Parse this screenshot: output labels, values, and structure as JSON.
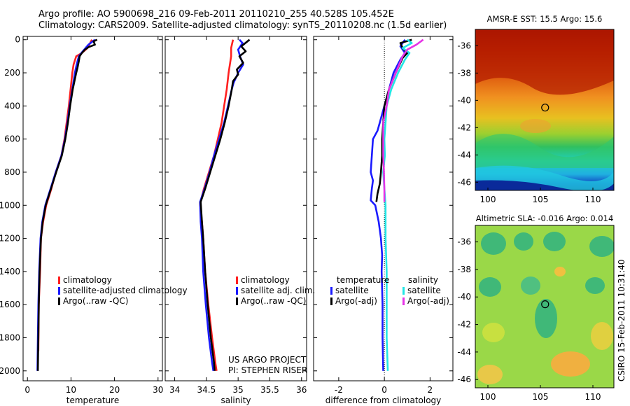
{
  "header": {
    "line1": "Argo profile: AO 5900698_216 09-Feb-2011 20110210_255 40.528S 105.452E",
    "line2": "Climatology: CARS2009. Satellite-adjusted climatology: synTS_20110208.nc (1.5d earlier)"
  },
  "colors": {
    "climatology": "#ff2020",
    "satellite": "#1a1aff",
    "argo": "#000000",
    "sal_satellite": "#22e5e5",
    "sal_argo": "#e633e6"
  },
  "chart_data": [
    {
      "type": "line",
      "name": "temperature-profile",
      "xlabel": "temperature",
      "ylabel": "",
      "xlim": [
        -1,
        31
      ],
      "ylim": [
        2060,
        -20
      ],
      "xticks": [
        0,
        10,
        20,
        30
      ],
      "yticks": [
        0,
        200,
        400,
        600,
        800,
        1000,
        1200,
        1400,
        1600,
        1800,
        2000
      ],
      "legend": {
        "position": "lower-center",
        "entries": [
          "climatology",
          "satellite-adjusted climatology",
          "Argo(..raw -QC)"
        ]
      },
      "series": [
        {
          "name": "climatology",
          "color": "#ff2020",
          "points": [
            [
              14.8,
              0
            ],
            [
              13.8,
              50
            ],
            [
              12.5,
              80
            ],
            [
              11.2,
              100
            ],
            [
              10.6,
              150
            ],
            [
              10.3,
              200
            ],
            [
              9.9,
              300
            ],
            [
              9.5,
              400
            ],
            [
              9.0,
              500
            ],
            [
              8.5,
              600
            ],
            [
              7.8,
              700
            ],
            [
              6.5,
              800
            ],
            [
              5.5,
              900
            ],
            [
              4.3,
              1000
            ],
            [
              3.6,
              1100
            ],
            [
              3.1,
              1200
            ],
            [
              2.9,
              1400
            ],
            [
              2.6,
              1600
            ],
            [
              2.5,
              1880
            ]
          ]
        },
        {
          "name": "satellite",
          "color": "#1a1aff",
          "points": [
            [
              15.5,
              0
            ],
            [
              14.0,
              30
            ],
            [
              12.7,
              70
            ],
            [
              11.8,
              100
            ],
            [
              11.3,
              150
            ],
            [
              10.9,
              200
            ],
            [
              10.3,
              300
            ],
            [
              9.7,
              400
            ],
            [
              9.2,
              500
            ],
            [
              8.6,
              600
            ],
            [
              7.8,
              700
            ],
            [
              6.5,
              800
            ],
            [
              5.3,
              900
            ],
            [
              4.1,
              1000
            ],
            [
              3.4,
              1100
            ],
            [
              3.0,
              1200
            ],
            [
              2.7,
              1400
            ],
            [
              2.5,
              1600
            ],
            [
              2.4,
              1800
            ],
            [
              2.3,
              2000
            ]
          ]
        },
        {
          "name": "Argo(..raw -QC)",
          "color": "#000000",
          "points": [
            [
              16.0,
              0
            ],
            [
              15.2,
              10
            ],
            [
              15.5,
              30
            ],
            [
              14.0,
              45
            ],
            [
              13.2,
              60
            ],
            [
              12.5,
              80
            ],
            [
              12.0,
              100
            ],
            [
              11.8,
              130
            ],
            [
              11.5,
              170
            ],
            [
              11.2,
              200
            ],
            [
              10.8,
              250
            ],
            [
              10.4,
              300
            ],
            [
              9.8,
              400
            ],
            [
              9.3,
              500
            ],
            [
              8.7,
              600
            ],
            [
              7.9,
              700
            ],
            [
              6.6,
              800
            ],
            [
              5.4,
              900
            ],
            [
              4.2,
              1000
            ],
            [
              3.5,
              1100
            ],
            [
              3.1,
              1200
            ],
            [
              2.8,
              1400
            ],
            [
              2.6,
              1600
            ],
            [
              2.5,
              1800
            ],
            [
              2.4,
              2000
            ]
          ]
        }
      ]
    },
    {
      "type": "line",
      "name": "salinity-profile",
      "xlabel": "salinity",
      "xlim": [
        33.85,
        36.08
      ],
      "ylim": [
        2060,
        -20
      ],
      "xticks": [
        34,
        34.5,
        35,
        35.5,
        36
      ],
      "xticklabels": [
        "34",
        "34.5",
        "35",
        "35.5",
        "36"
      ],
      "legend": {
        "position": "lower-right",
        "entries": [
          "climatology",
          "satellite adj. clim.",
          "Argo(..raw -QC)"
        ]
      },
      "annotation": [
        "US ARGO PROJECT",
        "PI: STEPHEN RISER"
      ],
      "series": [
        {
          "name": "climatology",
          "color": "#ff2020",
          "points": [
            [
              34.92,
              0
            ],
            [
              34.89,
              50
            ],
            [
              34.89,
              100
            ],
            [
              34.87,
              150
            ],
            [
              34.85,
              200
            ],
            [
              34.82,
              300
            ],
            [
              34.78,
              400
            ],
            [
              34.74,
              500
            ],
            [
              34.68,
              600
            ],
            [
              34.62,
              700
            ],
            [
              34.54,
              800
            ],
            [
              34.46,
              900
            ],
            [
              34.4,
              990
            ],
            [
              34.43,
              1100
            ],
            [
              34.45,
              1200
            ],
            [
              34.48,
              1400
            ],
            [
              34.53,
              1600
            ],
            [
              34.59,
              1800
            ],
            [
              34.64,
              1950
            ],
            [
              34.66,
              2000
            ]
          ]
        },
        {
          "name": "satellite",
          "color": "#1a1aff",
          "points": [
            [
              35.02,
              0
            ],
            [
              35.07,
              20
            ],
            [
              35.0,
              60
            ],
            [
              35.03,
              100
            ],
            [
              35.08,
              150
            ],
            [
              35.0,
              200
            ],
            [
              34.93,
              260
            ],
            [
              34.9,
              300
            ],
            [
              34.84,
              400
            ],
            [
              34.78,
              500
            ],
            [
              34.7,
              600
            ],
            [
              34.62,
              700
            ],
            [
              34.55,
              800
            ],
            [
              34.47,
              900
            ],
            [
              34.4,
              980
            ],
            [
              34.41,
              1100
            ],
            [
              34.43,
              1200
            ],
            [
              34.45,
              1400
            ],
            [
              34.49,
              1600
            ],
            [
              34.54,
              1800
            ],
            [
              34.59,
              1950
            ],
            [
              34.61,
              2000
            ]
          ]
        },
        {
          "name": "Argo(..raw -QC)",
          "color": "#000000",
          "points": [
            [
              35.18,
              0
            ],
            [
              35.05,
              40
            ],
            [
              35.12,
              70
            ],
            [
              35.02,
              100
            ],
            [
              35.08,
              140
            ],
            [
              34.98,
              180
            ],
            [
              35.0,
              210
            ],
            [
              34.92,
              250
            ],
            [
              34.9,
              300
            ],
            [
              34.85,
              400
            ],
            [
              34.79,
              500
            ],
            [
              34.72,
              600
            ],
            [
              34.64,
              700
            ],
            [
              34.56,
              800
            ],
            [
              34.48,
              900
            ],
            [
              34.41,
              980
            ],
            [
              34.43,
              1100
            ],
            [
              34.45,
              1200
            ],
            [
              34.48,
              1400
            ],
            [
              34.52,
              1600
            ],
            [
              34.57,
              1800
            ],
            [
              34.62,
              1950
            ],
            [
              34.63,
              2000
            ]
          ]
        }
      ]
    },
    {
      "type": "line",
      "name": "difference-profile",
      "xlabel": "difference from climatology",
      "xlim": [
        -3.1,
        3.0
      ],
      "ylim": [
        2060,
        -20
      ],
      "xticks": [
        -2,
        0,
        2
      ],
      "legend": {
        "position": "lower-center",
        "temperature_heading": "temperature",
        "salinity_heading": "salinity",
        "entries": [
          "satellite",
          "Argo(-adj)",
          "satellite",
          "Argo(-adj)"
        ]
      },
      "series": [
        {
          "name": "temperature satellite",
          "color": "#1a1aff",
          "points": [
            [
              0.9,
              0
            ],
            [
              0.7,
              40
            ],
            [
              0.9,
              80
            ],
            [
              0.7,
              120
            ],
            [
              0.4,
              200
            ],
            [
              0.2,
              300
            ],
            [
              0.0,
              400
            ],
            [
              -0.2,
              500
            ],
            [
              -0.3,
              550
            ],
            [
              -0.5,
              600
            ],
            [
              -0.55,
              700
            ],
            [
              -0.6,
              800
            ],
            [
              -0.5,
              850
            ],
            [
              -0.55,
              900
            ],
            [
              -0.6,
              970
            ],
            [
              -0.4,
              1000
            ],
            [
              -0.25,
              1100
            ],
            [
              -0.15,
              1200
            ],
            [
              -0.1,
              1300
            ],
            [
              -0.12,
              1400
            ],
            [
              -0.08,
              1600
            ],
            [
              -0.08,
              1800
            ],
            [
              -0.05,
              2000
            ]
          ]
        },
        {
          "name": "temperature Argo(-adj)",
          "color": "#000000",
          "points": [
            [
              1.2,
              0
            ],
            [
              0.7,
              20
            ],
            [
              0.8,
              50
            ],
            [
              1.0,
              80
            ],
            [
              0.8,
              110
            ],
            [
              0.5,
              200
            ],
            [
              0.2,
              300
            ],
            [
              0.0,
              400
            ],
            [
              -0.05,
              500
            ],
            [
              -0.1,
              600
            ],
            [
              -0.1,
              700
            ],
            [
              -0.15,
              800
            ],
            [
              -0.2,
              870
            ],
            [
              -0.3,
              930
            ],
            [
              -0.35,
              980
            ]
          ]
        },
        {
          "name": "salinity satellite",
          "color": "#22e5e5",
          "points": [
            [
              1.0,
              0
            ],
            [
              1.2,
              20
            ],
            [
              0.8,
              50
            ],
            [
              1.1,
              80
            ],
            [
              0.9,
              120
            ],
            [
              0.6,
              200
            ],
            [
              0.3,
              300
            ],
            [
              0.1,
              400
            ],
            [
              0.05,
              500
            ],
            [
              0.0,
              600
            ],
            [
              0.02,
              700
            ],
            [
              -0.05,
              800
            ],
            [
              0.0,
              900
            ],
            [
              0.05,
              1000
            ],
            [
              0.05,
              1200
            ],
            [
              0.1,
              1400
            ],
            [
              0.1,
              1600
            ],
            [
              0.1,
              1800
            ],
            [
              0.15,
              2000
            ]
          ]
        },
        {
          "name": "salinity Argo(-adj)",
          "color": "#e633e6",
          "points": [
            [
              1.7,
              0
            ],
            [
              1.4,
              30
            ],
            [
              1.0,
              60
            ],
            [
              0.8,
              100
            ],
            [
              0.5,
              200
            ],
            [
              0.2,
              300
            ],
            [
              0.1,
              400
            ],
            [
              -0.05,
              500
            ],
            [
              -0.05,
              600
            ],
            [
              -0.05,
              700
            ],
            [
              -0.02,
              800
            ],
            [
              0.0,
              900
            ],
            [
              0.0,
              980
            ]
          ]
        }
      ]
    },
    {
      "type": "heatmap",
      "name": "sst-map",
      "title": "AMSR-E SST: 15.5 Argo: 15.6",
      "xlim": [
        98.8,
        112
      ],
      "ylim": [
        -46.6,
        -34.8
      ],
      "xticks": [
        100,
        105,
        110
      ],
      "yticks": [
        -36,
        -38,
        -40,
        -42,
        -44,
        -46
      ],
      "marker": {
        "lon": 105.45,
        "lat": -40.53
      }
    },
    {
      "type": "heatmap",
      "name": "sla-map",
      "title": "Altimetric SLA: -0.016 Argo: 0.014",
      "xlim": [
        98.8,
        112
      ],
      "ylim": [
        -46.6,
        -34.8
      ],
      "xticks": [
        100,
        105,
        110
      ],
      "yticks": [
        -36,
        -38,
        -40,
        -42,
        -44,
        -46
      ],
      "marker": {
        "lon": 105.45,
        "lat": -40.53
      }
    }
  ],
  "credit": "CSIRO 15-Feb-2011 10:31:40"
}
